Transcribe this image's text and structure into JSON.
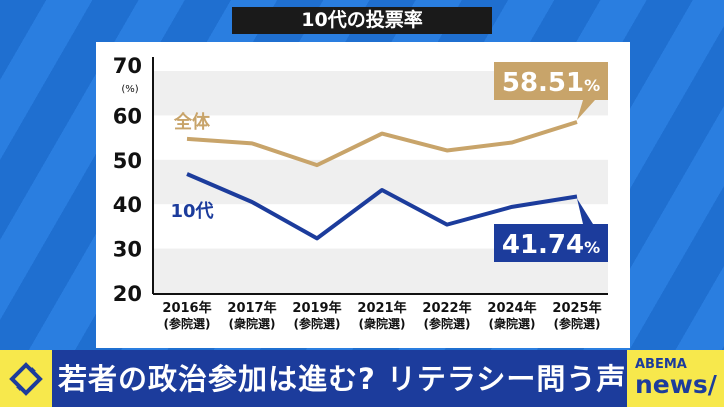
{
  "title": "10代の投票率",
  "chart_data": {
    "type": "line",
    "title": "10代の投票率",
    "ylabel": "(%)",
    "ylim": [
      20,
      70
    ],
    "yticks": [
      20,
      30,
      40,
      50,
      60,
      70
    ],
    "grid": "alternating horizontal bands",
    "categories": [
      "2016年",
      "2017年",
      "2019年",
      "2021年",
      "2022年",
      "2024年",
      "2025年"
    ],
    "category_sublabels": [
      "(参院選)",
      "(衆院選)",
      "(参院選)",
      "(衆院選)",
      "(参院選)",
      "(衆院選)",
      "(参院選)"
    ],
    "series": [
      {
        "name": "全体",
        "color": "#c8a46a",
        "values": [
          54.7,
          53.7,
          48.8,
          55.9,
          52.1,
          53.9,
          58.51
        ]
      },
      {
        "name": "10代",
        "color": "#1c3c9c",
        "values": [
          46.8,
          40.5,
          32.3,
          43.2,
          35.4,
          39.4,
          41.74
        ]
      }
    ],
    "annotations": [
      {
        "series": "全体",
        "text": "58.51",
        "unit": "%"
      },
      {
        "series": "10代",
        "text": "41.74",
        "unit": "%"
      }
    ]
  },
  "caption": "若者の政治参加は進む? リテラシー問う声も",
  "logo": {
    "line1": "ABEMA",
    "line2": "news/"
  }
}
